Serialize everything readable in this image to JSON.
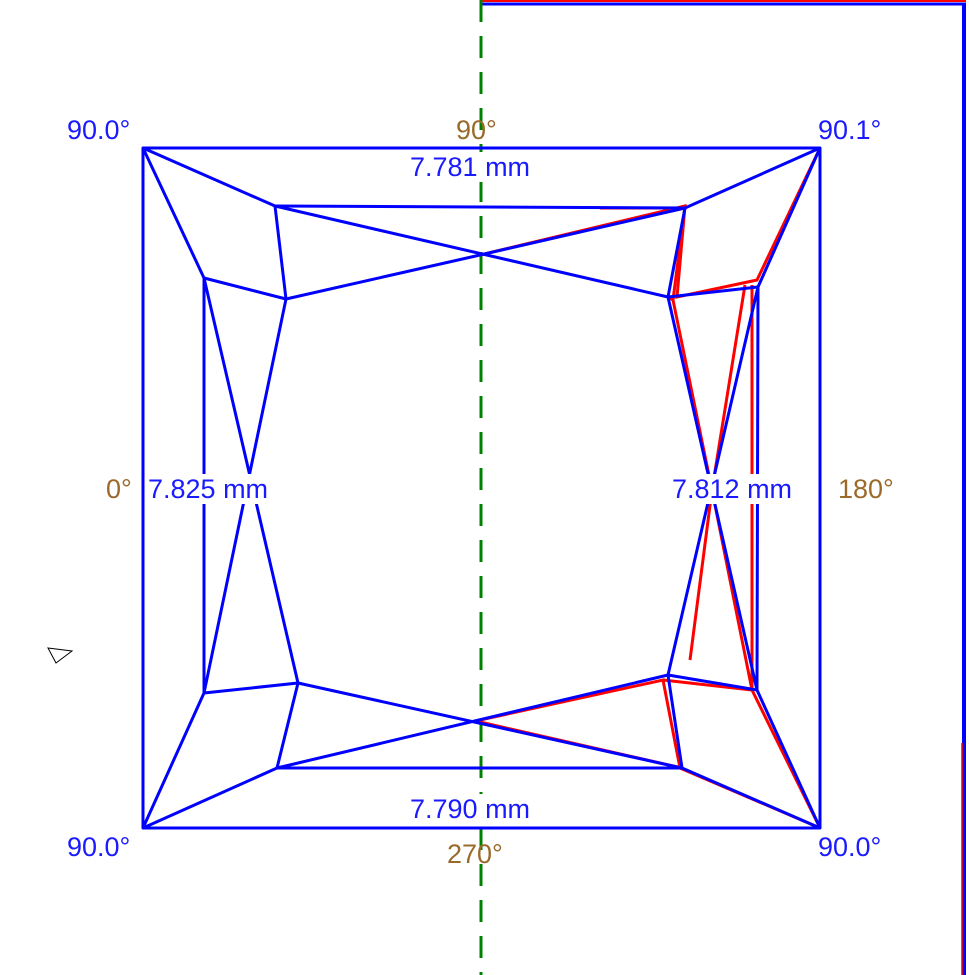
{
  "colors": {
    "outline": "#0000ff",
    "deviation": "#ff0000",
    "axis": "#008000",
    "angle_label": "#9a6a2a",
    "measure_label": "#1a1aff"
  },
  "corners": {
    "top_left": "90.0°",
    "top_right": "90.1°",
    "bottom_left": "90.0°",
    "bottom_right": "90.0°"
  },
  "angles": {
    "top": "90°",
    "left": "0°",
    "right": "180°",
    "bottom": "270°"
  },
  "measurements": {
    "top": "7.781 mm",
    "left": "7.825 mm",
    "right": "7.812 mm",
    "bottom": "7.790 mm"
  },
  "cursor_icon": "triangle-pointer-icon"
}
